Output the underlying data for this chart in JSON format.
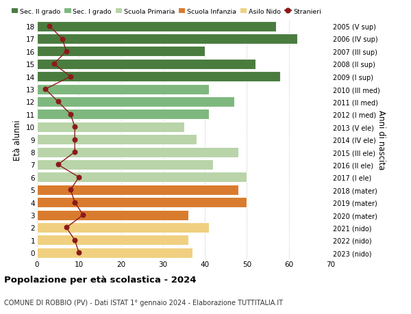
{
  "ages": [
    18,
    17,
    16,
    15,
    14,
    13,
    12,
    11,
    10,
    9,
    8,
    7,
    6,
    5,
    4,
    3,
    2,
    1,
    0
  ],
  "bar_values": [
    57,
    62,
    40,
    52,
    58,
    41,
    47,
    41,
    35,
    38,
    48,
    42,
    50,
    48,
    50,
    36,
    41,
    36,
    37
  ],
  "stranieri": [
    3,
    6,
    7,
    4,
    8,
    2,
    5,
    8,
    9,
    9,
    9,
    5,
    10,
    8,
    9,
    11,
    7,
    9,
    10
  ],
  "anni_nascita": [
    "2005 (V sup)",
    "2006 (IV sup)",
    "2007 (III sup)",
    "2008 (II sup)",
    "2009 (I sup)",
    "2010 (III med)",
    "2011 (II med)",
    "2012 (I med)",
    "2013 (V ele)",
    "2014 (IV ele)",
    "2015 (III ele)",
    "2016 (II ele)",
    "2017 (I ele)",
    "2018 (mater)",
    "2019 (mater)",
    "2020 (mater)",
    "2021 (nido)",
    "2022 (nido)",
    "2023 (nido)"
  ],
  "bar_colors": [
    "#4a7c3f",
    "#4a7c3f",
    "#4a7c3f",
    "#4a7c3f",
    "#4a7c3f",
    "#7eb87e",
    "#7eb87e",
    "#7eb87e",
    "#b8d4a8",
    "#b8d4a8",
    "#b8d4a8",
    "#b8d4a8",
    "#b8d4a8",
    "#d97b2e",
    "#d97b2e",
    "#d97b2e",
    "#f0d080",
    "#f0d080",
    "#f0d080"
  ],
  "legend_labels": [
    "Sec. II grado",
    "Sec. I grado",
    "Scuola Primaria",
    "Scuola Infanzia",
    "Asilo Nido",
    "Stranieri"
  ],
  "legend_colors": [
    "#4a7c3f",
    "#7eb87e",
    "#b8d4a8",
    "#d97b2e",
    "#f0d080",
    "#c0392b"
  ],
  "stranieri_color": "#8b1a1a",
  "title": "Popolazione per età scolastica - 2024",
  "subtitle": "COMUNE DI ROBBIO (PV) - Dati ISTAT 1° gennaio 2024 - Elaborazione TUTTITALIA.IT",
  "ylabel": "Età alunni",
  "ylabel2": "Anni di nascita",
  "xlabel_vals": [
    0,
    10,
    20,
    30,
    40,
    50,
    60,
    70
  ],
  "xlim": [
    0,
    70
  ],
  "background_color": "#ffffff"
}
